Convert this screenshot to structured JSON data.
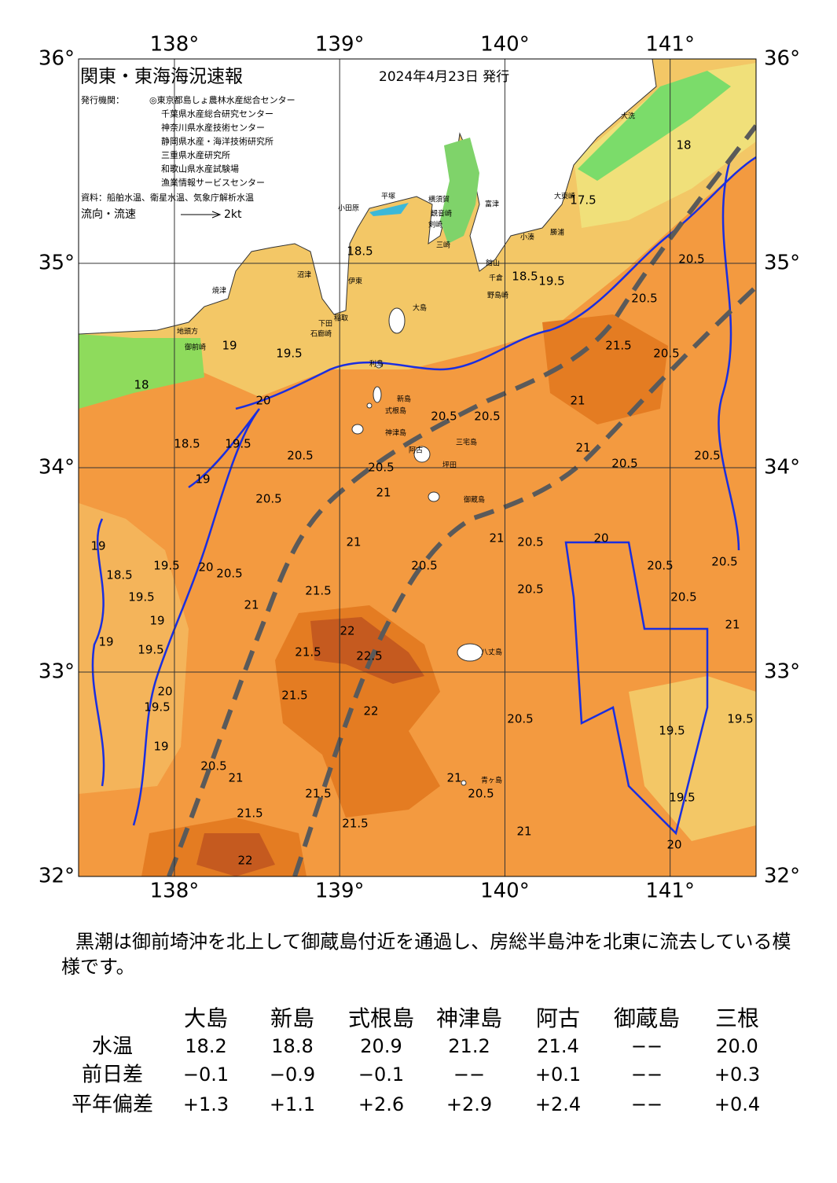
{
  "map": {
    "title": "関東・東海海況速報",
    "date": "2024年4月23日 発行",
    "issuer_label": "発行機関：",
    "issuers": [
      "◎東京都島しょ農林水産総合センター",
      "千葉県水産総合研究センター",
      "神奈川県水産技術センター",
      "静岡県水産・海洋技術研究所",
      "三重県水産研究所",
      "和歌山県水産試験場",
      "漁業情報サービスセンター"
    ],
    "source": "資料：船舶水温、衛星水温、気象庁解析水温",
    "flow_label": "流向・流速",
    "flow_scale": "2kt",
    "xlim": [
      137.42,
      141.52
    ],
    "ylim": [
      32,
      36
    ],
    "xticks": [
      {
        "value": 138,
        "label": "138°"
      },
      {
        "value": 139,
        "label": "139°"
      },
      {
        "value": 140,
        "label": "140°"
      },
      {
        "value": 141,
        "label": "141°"
      }
    ],
    "yticks": [
      {
        "value": 32,
        "label": "32°"
      },
      {
        "value": 33,
        "label": "33°"
      },
      {
        "value": 34,
        "label": "34°"
      },
      {
        "value": 35,
        "label": "35°"
      },
      {
        "value": 36,
        "label": "36°"
      }
    ],
    "places": [
      "大島",
      "利島",
      "新島",
      "式根島",
      "神津島",
      "三宅島",
      "阿古",
      "坪田",
      "御蔵島",
      "八丈島",
      "青ヶ島",
      "大洗",
      "大東崎",
      "小湊",
      "勝浦",
      "館山",
      "千倉",
      "野島崎",
      "富津",
      "横須賀",
      "観音崎",
      "三崎",
      "剣崎",
      "平塚",
      "小田原",
      "伊東",
      "稲取",
      "下田",
      "石廊崎",
      "沼津",
      "焼津",
      "御前崎",
      "地頭方"
    ],
    "contour_labels": [
      "18",
      "17.5",
      "18.5",
      "19.5",
      "19",
      "18",
      "20",
      "18.5",
      "19.5",
      "19",
      "20.5",
      "20.5",
      "20.5",
      "20.5",
      "21",
      "21",
      "20.5",
      "20.5",
      "19",
      "18.5",
      "19.5",
      "19",
      "19.5",
      "19",
      "19.5",
      "20",
      "20.5",
      "21",
      "21",
      "21.5",
      "22",
      "21.5",
      "22.5",
      "22",
      "21.5",
      "20.5",
      "21",
      "21.5",
      "22",
      "21.5",
      "21.5",
      "21",
      "20.5",
      "20.5",
      "20.5",
      "20.5",
      "20",
      "20.5",
      "20.5",
      "20.5",
      "21",
      "19.5",
      "19.5",
      "19.5",
      "20",
      "21",
      "20.5",
      "21",
      "20.5",
      "21",
      "20.5",
      "20.5",
      "21.5",
      "20.5",
      "19.5",
      "18.5",
      "20",
      "19",
      "19.5"
    ]
  },
  "description": "黒潮は御前埼沖を北上して御蔵島付近を通過し、房総半島沖を北東に流去している模様です。",
  "table": {
    "columns": [
      "大島",
      "新島",
      "式根島",
      "神津島",
      "阿古",
      "御蔵島",
      "三根"
    ],
    "rows": [
      {
        "label": "水温",
        "values": [
          "18.2",
          "18.8",
          "20.9",
          "21.2",
          "21.4",
          "−−",
          "20.0"
        ]
      },
      {
        "label": "前日差",
        "values": [
          "−0.1",
          "−0.9",
          "−0.1",
          "−−",
          "+0.1",
          "−−",
          "+0.3"
        ]
      },
      {
        "label": "平年偏差",
        "values": [
          "+1.3",
          "+1.1",
          "+2.6",
          "+2.9",
          "+2.4",
          "−−",
          "+0.4"
        ]
      }
    ]
  }
}
